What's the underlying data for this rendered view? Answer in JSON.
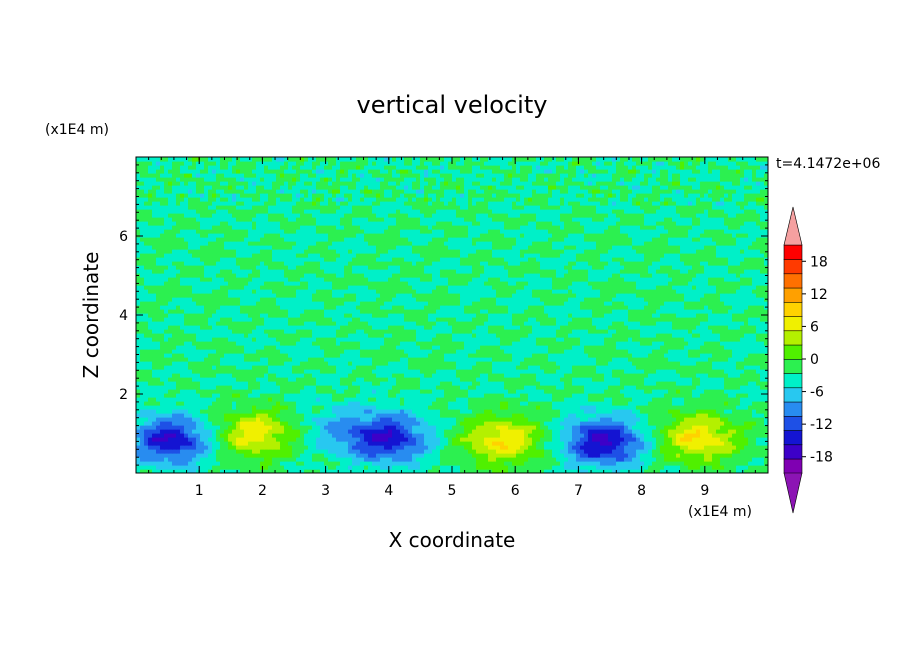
{
  "chart_data": {
    "type": "heatmap",
    "title": "vertical velocity",
    "xlabel": "X coordinate",
    "ylabel": "Z coordinate",
    "x_unit": "(x1E4 m)",
    "y_unit": "(x1E4 m)",
    "time_label": "t=4.1472e+06",
    "xlim": [
      0,
      10
    ],
    "ylim": [
      0,
      8
    ],
    "x_ticks": [
      "1",
      "2",
      "3",
      "4",
      "5",
      "6",
      "7",
      "8",
      "9"
    ],
    "y_ticks": [
      "2",
      "4",
      "6"
    ],
    "colorbar": {
      "min": -21,
      "max": 21,
      "step": 3,
      "tick_labels": [
        "18",
        "12",
        "6",
        "0",
        "-6",
        "-12",
        "-18"
      ],
      "tick_values": [
        18,
        12,
        6,
        0,
        -6,
        -12,
        -18
      ],
      "extend": "both",
      "colors": [
        "#7f00b2",
        "#3d00c8",
        "#1414d2",
        "#1e50e6",
        "#288cf0",
        "#28c8f0",
        "#00f0c8",
        "#2cf050",
        "#50f000",
        "#b4f000",
        "#f0f000",
        "#ffd200",
        "#ffa000",
        "#ff7000",
        "#ff3a00",
        "#ff0000"
      ],
      "over_color": "#f5a0a0",
      "under_color": "#8c14b4"
    },
    "features": [
      {
        "x": 0.55,
        "z": 0.85,
        "value": -15
      },
      {
        "x": 1.9,
        "z": 1.0,
        "value": 11
      },
      {
        "x": 3.2,
        "z": 1.1,
        "value": -5
      },
      {
        "x": 4.0,
        "z": 0.9,
        "value": -14
      },
      {
        "x": 5.8,
        "z": 0.85,
        "value": 12
      },
      {
        "x": 7.4,
        "z": 0.8,
        "value": -16
      },
      {
        "x": 8.9,
        "z": 0.9,
        "value": 12
      }
    ],
    "background_value": 0
  }
}
